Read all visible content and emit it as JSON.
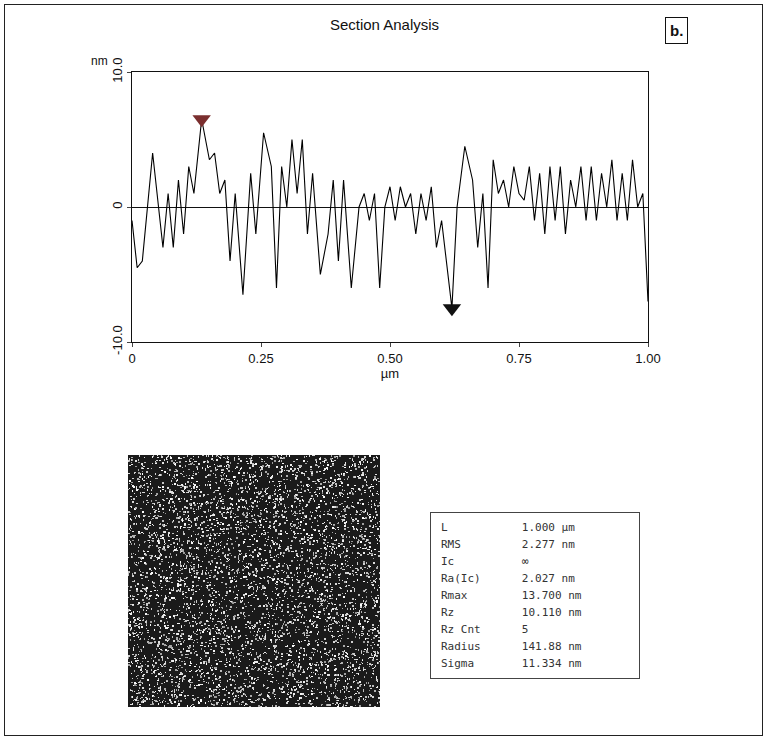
{
  "chart_data": {
    "type": "line",
    "title": "Section Analysis",
    "panel": "b.",
    "xlabel": "µm",
    "ylabel": "nm",
    "color": "#000000",
    "grid": false,
    "x": [
      0,
      0.01,
      0.02,
      0.04,
      0.06,
      0.07,
      0.08,
      0.09,
      0.1,
      0.11,
      0.12,
      0.135,
      0.15,
      0.16,
      0.17,
      0.18,
      0.19,
      0.2,
      0.215,
      0.23,
      0.24,
      0.255,
      0.27,
      0.28,
      0.29,
      0.3,
      0.31,
      0.32,
      0.33,
      0.34,
      0.35,
      0.365,
      0.38,
      0.39,
      0.4,
      0.41,
      0.425,
      0.44,
      0.45,
      0.46,
      0.47,
      0.48,
      0.49,
      0.5,
      0.51,
      0.52,
      0.53,
      0.54,
      0.55,
      0.56,
      0.57,
      0.58,
      0.59,
      0.6,
      0.62,
      0.63,
      0.645,
      0.66,
      0.67,
      0.68,
      0.69,
      0.7,
      0.71,
      0.72,
      0.73,
      0.74,
      0.75,
      0.76,
      0.77,
      0.78,
      0.79,
      0.8,
      0.81,
      0.82,
      0.83,
      0.84,
      0.85,
      0.86,
      0.87,
      0.88,
      0.89,
      0.9,
      0.91,
      0.92,
      0.93,
      0.94,
      0.95,
      0.96,
      0.97,
      0.98,
      0.99,
      1.0
    ],
    "values": [
      -1,
      -4.5,
      -4,
      4,
      -3,
      1,
      -3,
      2,
      -2,
      3,
      1,
      6.5,
      3.5,
      4,
      1,
      2,
      -4,
      1,
      -6.5,
      2.5,
      -2,
      5.5,
      3,
      -6,
      3,
      0,
      5,
      1,
      5,
      -2,
      2.5,
      -5,
      -2,
      2,
      -4,
      2,
      -6,
      0,
      1,
      -1,
      1,
      -6,
      0,
      1.5,
      -1,
      1.5,
      0,
      1,
      -2,
      1,
      -1,
      1.5,
      -3,
      -1,
      -7.5,
      0,
      4.5,
      2,
      -3,
      1,
      -6,
      3.5,
      1,
      2,
      0,
      3,
      1,
      0.5,
      3,
      -1,
      2.5,
      -2,
      3,
      -1,
      3,
      -2,
      2,
      0,
      3,
      -1,
      3,
      -1,
      2.5,
      0,
      3.5,
      -1,
      2.5,
      -1,
      3.5,
      0,
      1,
      -7
    ],
    "cursors": {
      "x": [
        0.135,
        0.62
      ],
      "values": [
        6.5,
        -7.5
      ],
      "colors": [
        "#7a2e2e",
        "#111111"
      ],
      "marker": "triangle-down"
    },
    "xlim": [
      0,
      1
    ],
    "xticks": [
      0,
      0.25,
      {
        "value": 0.5,
        "label": "0.50"
      },
      0.75,
      {
        "value": 1,
        "label": "1.00"
      }
    ],
    "ylim": [
      -10,
      10
    ],
    "yticks": [
      {
        "value": -10,
        "label": "-10.0"
      },
      0,
      {
        "value": 10,
        "label": "10.0"
      }
    ]
  },
  "table": {
    "rows": [
      [
        "L",
        "1.000 µm"
      ],
      [
        "RMS",
        "2.277 nm"
      ],
      [
        "Ic",
        "∞"
      ],
      [
        "Ra(Ic)",
        "2.027 nm"
      ],
      [
        "Rmax",
        "13.700 nm"
      ],
      [
        "Rz",
        "10.110 nm"
      ],
      [
        "Rz Cnt",
        "5"
      ],
      [
        "Radius",
        "141.88 nm"
      ],
      [
        "Sigma",
        "11.334 nm"
      ]
    ]
  }
}
